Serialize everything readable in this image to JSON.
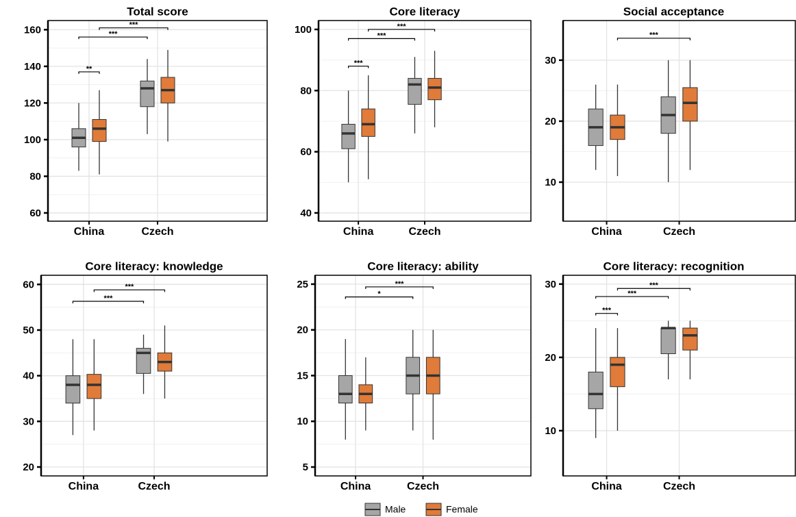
{
  "chart_data": [
    {
      "type": "box",
      "title": "Total score",
      "categories": [
        "China",
        "Czech"
      ],
      "ylim": [
        55.5,
        165
      ],
      "yticks": [
        60,
        80,
        100,
        120,
        140,
        160
      ],
      "grid": true,
      "series": [
        {
          "values": [
            {
              "whislo": 83,
              "q1": 96,
              "med": 101,
              "q3": 106,
              "whishi": 120
            },
            {
              "whislo": 103,
              "q1": 118,
              "med": 128,
              "q3": 132,
              "whishi": 144
            }
          ]
        },
        {
          "values": [
            {
              "whislo": 81,
              "q1": 99,
              "med": 106,
              "q3": 111,
              "whishi": 127
            },
            {
              "whislo": 99,
              "q1": 120,
              "med": 127,
              "q3": 134,
              "whishi": 149
            }
          ]
        }
      ],
      "annotations": [
        {
          "label": "**",
          "y": 137,
          "from": [
            0,
            0
          ],
          "to": [
            0,
            1
          ]
        },
        {
          "label": "***",
          "y": 156,
          "from": [
            0,
            0
          ],
          "to": [
            1,
            0
          ]
        },
        {
          "label": "***",
          "y": 161,
          "from": [
            0,
            1
          ],
          "to": [
            1,
            1
          ]
        }
      ]
    },
    {
      "type": "box",
      "title": "Core literacy",
      "categories": [
        "China",
        "Czech"
      ],
      "ylim": [
        37.3,
        102.9
      ],
      "yticks": [
        40,
        60,
        80,
        100
      ],
      "grid": true,
      "series": [
        {
          "values": [
            {
              "whislo": 50,
              "q1": 61,
              "med": 66,
              "q3": 69,
              "whishi": 80
            },
            {
              "whislo": 66,
              "q1": 75.5,
              "med": 82,
              "q3": 84,
              "whishi": 91
            }
          ]
        },
        {
          "values": [
            {
              "whislo": 51,
              "q1": 65,
              "med": 69,
              "q3": 74,
              "whishi": 85
            },
            {
              "whislo": 68,
              "q1": 77,
              "med": 81,
              "q3": 84,
              "whishi": 93
            }
          ]
        }
      ],
      "annotations": [
        {
          "label": "***",
          "y": 88,
          "from": [
            0,
            0
          ],
          "to": [
            0,
            1
          ]
        },
        {
          "label": "***",
          "y": 97,
          "from": [
            0,
            0
          ],
          "to": [
            1,
            0
          ]
        },
        {
          "label": "***",
          "y": 100,
          "from": [
            0,
            1
          ],
          "to": [
            1,
            1
          ]
        }
      ]
    },
    {
      "type": "box",
      "title": "Social acceptance",
      "categories": [
        "China",
        "Czech"
      ],
      "ylim": [
        3.6,
        36.5
      ],
      "yticks": [
        10,
        20,
        30
      ],
      "grid": true,
      "series": [
        {
          "values": [
            {
              "whislo": 12,
              "q1": 16,
              "med": 19,
              "q3": 22,
              "whishi": 26
            },
            {
              "whislo": 10,
              "q1": 18,
              "med": 21,
              "q3": 24,
              "whishi": 30
            }
          ]
        },
        {
          "values": [
            {
              "whislo": 11,
              "q1": 17,
              "med": 19,
              "q3": 21,
              "whishi": 26
            },
            {
              "whislo": 12,
              "q1": 20,
              "med": 23,
              "q3": 25.5,
              "whishi": 30
            }
          ]
        }
      ],
      "annotations": [
        {
          "label": "***",
          "y": 33.6,
          "from": [
            0,
            1
          ],
          "to": [
            1,
            1
          ]
        }
      ]
    },
    {
      "type": "box",
      "title": "Core literacy: knowledge",
      "categories": [
        "China",
        "Czech"
      ],
      "ylim": [
        18.05,
        62
      ],
      "yticks": [
        20,
        30,
        40,
        50,
        60
      ],
      "grid": true,
      "series": [
        {
          "values": [
            {
              "whislo": 27,
              "q1": 34,
              "med": 38,
              "q3": 40,
              "whishi": 48
            },
            {
              "whislo": 36,
              "q1": 40.5,
              "med": 45,
              "q3": 46,
              "whishi": 49
            }
          ]
        },
        {
          "values": [
            {
              "whislo": 28,
              "q1": 35,
              "med": 38,
              "q3": 40.3,
              "whishi": 48
            },
            {
              "whislo": 35,
              "q1": 41,
              "med": 43,
              "q3": 45,
              "whishi": 51
            }
          ]
        }
      ],
      "annotations": [
        {
          "label": "***",
          "y": 56.3,
          "from": [
            0,
            0
          ],
          "to": [
            1,
            0
          ]
        },
        {
          "label": "***",
          "y": 58.8,
          "from": [
            0,
            1
          ],
          "to": [
            1,
            1
          ]
        }
      ]
    },
    {
      "type": "box",
      "title": "Core literacy: ability",
      "categories": [
        "China",
        "Czech"
      ],
      "ylim": [
        4.03,
        25.97
      ],
      "yticks": [
        5,
        10,
        15,
        20,
        25
      ],
      "grid": true,
      "series": [
        {
          "values": [
            {
              "whislo": 8,
              "q1": 12,
              "med": 13,
              "q3": 15,
              "whishi": 19
            },
            {
              "whislo": 9,
              "q1": 13,
              "med": 15,
              "q3": 17,
              "whishi": 20
            }
          ]
        },
        {
          "values": [
            {
              "whislo": 9,
              "q1": 12,
              "med": 13,
              "q3": 14,
              "whishi": 17
            },
            {
              "whislo": 8,
              "q1": 13,
              "med": 15,
              "q3": 17,
              "whishi": 20
            }
          ]
        }
      ],
      "annotations": [
        {
          "label": "*",
          "y": 23.6,
          "from": [
            0,
            0
          ],
          "to": [
            1,
            0
          ]
        },
        {
          "label": "***",
          "y": 24.7,
          "from": [
            0,
            1
          ],
          "to": [
            1,
            1
          ]
        }
      ]
    },
    {
      "type": "box",
      "title": "Core literacy: recognition",
      "categories": [
        "China",
        "Czech"
      ],
      "ylim": [
        3.83,
        31.2
      ],
      "yticks": [
        10,
        20,
        30
      ],
      "grid": true,
      "series": [
        {
          "values": [
            {
              "whislo": 9,
              "q1": 13,
              "med": 15,
              "q3": 18,
              "whishi": 24
            },
            {
              "whislo": 17,
              "q1": 20.5,
              "med": 24,
              "q3": 24,
              "whishi": 25
            }
          ]
        },
        {
          "values": [
            {
              "whislo": 10,
              "q1": 16,
              "med": 19,
              "q3": 20,
              "whishi": 24
            },
            {
              "whislo": 17,
              "q1": 21,
              "med": 23,
              "q3": 24,
              "whishi": 25
            }
          ]
        }
      ],
      "annotations": [
        {
          "label": "***",
          "y": 26,
          "from": [
            0,
            0
          ],
          "to": [
            0,
            1
          ]
        },
        {
          "label": "***",
          "y": 28.3,
          "from": [
            0,
            0
          ],
          "to": [
            1,
            0
          ]
        },
        {
          "label": "***",
          "y": 29.4,
          "from": [
            0,
            1
          ],
          "to": [
            1,
            1
          ]
        }
      ]
    }
  ],
  "legend": {
    "position": "bottom",
    "entries": [
      {
        "name": "Male",
        "color": "#a6a6a6"
      },
      {
        "name": "Female",
        "color": "#e07b39"
      }
    ]
  }
}
